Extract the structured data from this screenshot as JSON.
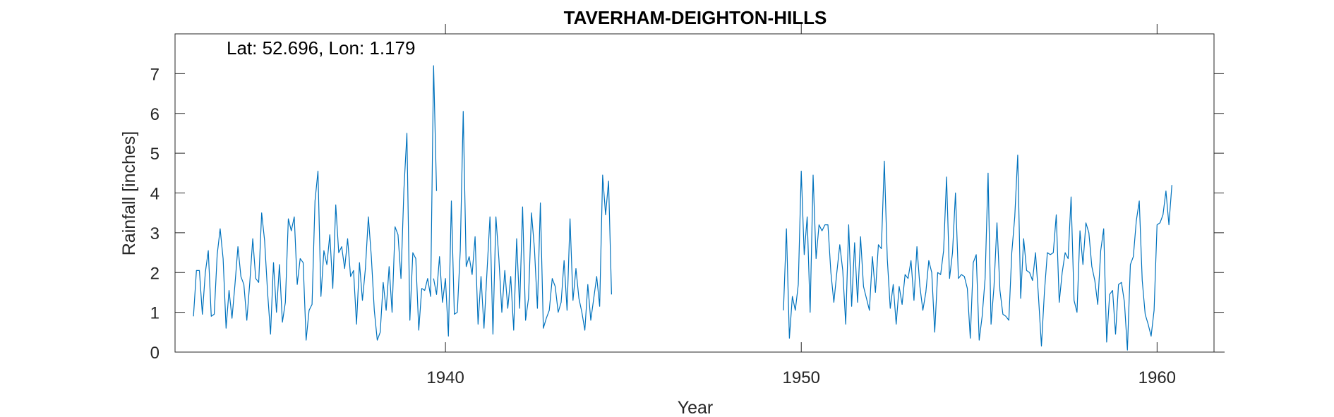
{
  "chart_data": {
    "type": "line",
    "title": "TAVERHAM-DEIGHTON-HILLS",
    "xlabel": "Year",
    "ylabel": "Rainfall [inches]",
    "annotation": "Lat: 52.696, Lon: 1.179",
    "xlim": [
      1932.4,
      1961.6
    ],
    "ylim": [
      0,
      8
    ],
    "xticks": [
      1940,
      1950,
      1960
    ],
    "yticks": [
      0,
      1,
      2,
      3,
      4,
      5,
      6,
      7
    ],
    "grid": false,
    "line_color": "#0072BD",
    "segments": [
      {
        "x_start": 1932.917,
        "x_step": 0.08333,
        "values": [
          0.9,
          2.05,
          2.05,
          0.95,
          2.0,
          2.55,
          0.9,
          0.95,
          2.45,
          3.1,
          2.35,
          0.6,
          1.55,
          0.85,
          1.7,
          2.65,
          1.9,
          1.7,
          0.8,
          1.75,
          2.85,
          1.85,
          1.75,
          3.5,
          2.8,
          1.5,
          0.45,
          2.25,
          1.0,
          2.2,
          0.75,
          1.25,
          3.35,
          3.05,
          3.4,
          1.7,
          2.35,
          2.25,
          0.3,
          1.05,
          1.2,
          3.8,
          4.55,
          1.4,
          2.55,
          2.2,
          2.95,
          1.6,
          3.7,
          2.5,
          2.65,
          2.1,
          2.85,
          1.9,
          2.05,
          0.7,
          2.25,
          1.3,
          2.1,
          3.4,
          2.4,
          1.05,
          0.3,
          0.5,
          1.75,
          1.05,
          2.15,
          1.0,
          3.15,
          2.95,
          1.85,
          4.1,
          5.5,
          0.8,
          2.5,
          2.35,
          0.55,
          1.6,
          1.55,
          1.85,
          1.4,
          7.2,
          4.05
        ]
      },
      {
        "x_start": 1939.667,
        "x_step": 0.08333,
        "values": [
          1.85,
          1.45,
          2.4,
          1.25,
          1.85,
          0.4,
          3.8,
          0.95,
          1.0,
          2.55,
          6.05,
          2.15,
          2.4,
          1.95,
          2.9,
          0.7,
          1.9,
          0.6,
          2.0,
          3.4,
          0.45,
          3.4,
          2.35,
          1.0,
          2.05,
          1.1,
          1.9,
          0.55,
          2.85,
          1.1,
          3.65,
          0.8,
          1.35,
          3.5,
          2.6,
          1.1,
          3.75,
          0.6,
          0.85,
          1.05,
          1.85,
          1.65,
          1.0,
          1.25,
          2.3,
          1.05,
          3.35,
          1.3,
          2.1,
          1.35,
          1.0,
          0.55,
          1.7,
          0.8,
          1.35,
          1.9,
          1.15,
          4.45,
          3.45,
          4.3,
          1.45
        ]
      },
      {
        "x_start": 1949.5,
        "x_step": 0.08333,
        "values": [
          1.05,
          3.1,
          0.35,
          1.4,
          1.05,
          1.7,
          4.55,
          2.45,
          3.4,
          1.0,
          4.45,
          2.35,
          3.2,
          3.05,
          3.2,
          3.2,
          2.0,
          1.25,
          2.0,
          2.7,
          2.05,
          0.7,
          3.2,
          1.15,
          2.75,
          1.25,
          2.9,
          1.65,
          1.35,
          1.05,
          2.4,
          1.5,
          2.7,
          2.6,
          4.8,
          2.35,
          1.1,
          1.7,
          0.7,
          1.65,
          1.2,
          1.95,
          1.85,
          2.3,
          1.3,
          2.65,
          1.65,
          1.05,
          1.5,
          2.3,
          2.0,
          0.5,
          2.0,
          1.95,
          2.55,
          4.4,
          1.85,
          2.5,
          4.0,
          1.85,
          1.95,
          1.9,
          1.6,
          0.35,
          2.25,
          2.45,
          0.3,
          0.9,
          1.85,
          4.5,
          0.7,
          1.65,
          3.25,
          1.55,
          0.95,
          0.9,
          0.8,
          2.5,
          3.4,
          4.95,
          1.35,
          2.85,
          2.05,
          2.0,
          1.8,
          2.5,
          1.4,
          0.15,
          1.5,
          2.5,
          2.45,
          2.5,
          3.45,
          1.25,
          2.0,
          2.5,
          2.35,
          3.9,
          1.3,
          1.0,
          3.05,
          2.2,
          3.25,
          3.0,
          2.15,
          1.8,
          1.2,
          2.55,
          3.1,
          0.25,
          1.45,
          1.55,
          0.45,
          1.7,
          1.75,
          1.25,
          0.05,
          2.2,
          2.4,
          3.3,
          3.8,
          1.8,
          0.95,
          0.7,
          0.4,
          1.05,
          3.2,
          3.25,
          3.45,
          4.05,
          3.2,
          4.2
        ]
      }
    ]
  }
}
